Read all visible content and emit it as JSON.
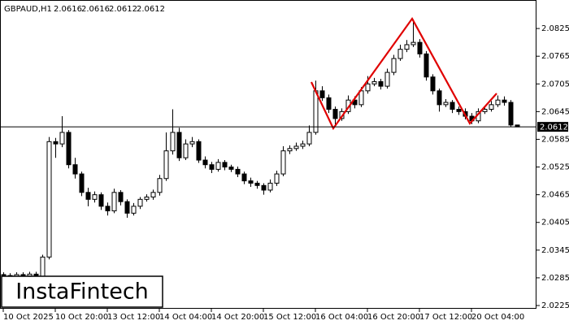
{
  "chart_data": {
    "type": "candlestick",
    "symbol": "GBPAUD,H1",
    "watermark": "InstaFintech",
    "open": [
      2.0292,
      2.029,
      2.0288,
      2.0292,
      2.0289,
      2.0293,
      2.0285,
      2.033,
      2.058,
      2.0575,
      2.06,
      2.053,
      2.051,
      2.047,
      2.0455,
      2.0465,
      2.044,
      2.043,
      2.047,
      2.045,
      2.0425,
      2.044,
      2.0455,
      2.046,
      2.047,
      2.05,
      2.056,
      2.06,
      2.0545,
      2.0575,
      2.058,
      2.054,
      2.053,
      2.052,
      2.0535,
      2.0525,
      2.052,
      2.051,
      2.0495,
      2.049,
      2.0485,
      2.0475,
      2.049,
      2.051,
      2.056,
      2.0565,
      2.057,
      2.0575,
      2.06,
      2.069,
      2.0675,
      2.065,
      2.063,
      2.0645,
      2.067,
      2.066,
      2.069,
      2.0705,
      2.071,
      2.07,
      2.073,
      2.076,
      2.078,
      2.079,
      2.0795,
      2.077,
      2.072,
      2.069,
      2.066,
      2.0665,
      2.065,
      2.0645,
      2.0635,
      2.0625,
      2.0645,
      2.065,
      2.066,
      2.067,
      2.0665,
      2.0616
    ],
    "high": [
      2.0297,
      2.0295,
      2.0297,
      2.0297,
      2.0298,
      2.0298,
      2.0335,
      2.059,
      2.0588,
      2.0635,
      2.0605,
      2.0545,
      2.0515,
      2.048,
      2.0472,
      2.047,
      2.0448,
      2.0478,
      2.0475,
      2.0455,
      2.0447,
      2.046,
      2.0466,
      2.0476,
      2.0508,
      2.06,
      2.065,
      2.061,
      2.0585,
      2.059,
      2.0585,
      2.0548,
      2.0536,
      2.0542,
      2.054,
      2.053,
      2.0526,
      2.0515,
      2.0502,
      2.0495,
      2.049,
      2.0498,
      2.0517,
      2.057,
      2.0572,
      2.0578,
      2.0582,
      2.0615,
      2.0712,
      2.07,
      2.0682,
      2.0656,
      2.0652,
      2.068,
      2.0678,
      2.0698,
      2.0722,
      2.0718,
      2.0716,
      2.0738,
      2.0768,
      2.079,
      2.08,
      2.0845,
      2.0802,
      2.0776,
      2.0726,
      2.0695,
      2.0672,
      2.067,
      2.0656,
      2.0652,
      2.0642,
      2.0652,
      2.0658,
      2.0668,
      2.068,
      2.0678,
      2.067,
      2.0616
    ],
    "low": [
      2.0285,
      2.0283,
      2.0283,
      2.0284,
      2.0284,
      2.028,
      2.028,
      2.0325,
      2.0545,
      2.0568,
      2.0522,
      2.05,
      2.0462,
      2.044,
      2.0448,
      2.0432,
      2.042,
      2.0425,
      2.0442,
      2.0415,
      2.042,
      2.0434,
      2.045,
      2.0454,
      2.0463,
      2.0495,
      2.0552,
      2.0538,
      2.054,
      2.0568,
      2.0534,
      2.0522,
      2.0512,
      2.0515,
      2.0518,
      2.0514,
      2.0503,
      2.0488,
      2.0482,
      2.0478,
      2.0465,
      2.047,
      2.0484,
      2.0505,
      2.0553,
      2.056,
      2.0564,
      2.057,
      2.0595,
      2.0668,
      2.0642,
      2.0615,
      2.0625,
      2.064,
      2.0652,
      2.0655,
      2.0684,
      2.07,
      2.0693,
      2.0695,
      2.0724,
      2.0755,
      2.0774,
      2.0785,
      2.0762,
      2.0712,
      2.0682,
      2.0645,
      2.0655,
      2.0642,
      2.0638,
      2.0628,
      2.0618,
      2.062,
      2.064,
      2.0645,
      2.0655,
      2.0658,
      2.0612,
      2.0612
    ],
    "close": [
      2.029,
      2.0288,
      2.0292,
      2.0289,
      2.0293,
      2.0285,
      2.033,
      2.058,
      2.0575,
      2.06,
      2.053,
      2.051,
      2.047,
      2.0455,
      2.0465,
      2.044,
      2.043,
      2.047,
      2.045,
      2.0425,
      2.044,
      2.0455,
      2.046,
      2.047,
      2.05,
      2.056,
      2.06,
      2.0545,
      2.0575,
      2.058,
      2.054,
      2.053,
      2.052,
      2.0535,
      2.0525,
      2.052,
      2.051,
      2.0495,
      2.049,
      2.0485,
      2.0475,
      2.049,
      2.051,
      2.056,
      2.0565,
      2.057,
      2.0575,
      2.06,
      2.069,
      2.0675,
      2.065,
      2.063,
      2.0645,
      2.067,
      2.066,
      2.069,
      2.0705,
      2.071,
      2.07,
      2.073,
      2.076,
      2.078,
      2.079,
      2.0795,
      2.077,
      2.072,
      2.069,
      2.066,
      2.0665,
      2.065,
      2.0645,
      2.0635,
      2.0625,
      2.0645,
      2.065,
      2.066,
      2.067,
      2.0665,
      2.0616,
      2.0612
    ],
    "up_color": "#ffffff",
    "down_color": "#000000",
    "ylim": [
      2.0218,
      2.0885
    ],
    "yticks": [
      2.0225,
      2.0285,
      2.0345,
      2.0405,
      2.0465,
      2.0525,
      2.0585,
      2.0645,
      2.0705,
      2.0765,
      2.0825
    ],
    "xticks": [
      {
        "value": 0,
        "label": "10 Oct 2025"
      },
      {
        "value": 8,
        "label": "10 Oct 20:00"
      },
      {
        "value": 16,
        "label": "13 Oct 12:00"
      },
      {
        "value": 24,
        "label": "14 Oct 04:00"
      },
      {
        "value": 32,
        "label": "14 Oct 20:00"
      },
      {
        "value": 40,
        "label": "15 Oct 12:00"
      },
      {
        "value": 48,
        "label": "16 Oct 04:00"
      },
      {
        "value": 56,
        "label": "16 Oct 20:00"
      },
      {
        "value": 64,
        "label": "17 Oct 12:00"
      },
      {
        "value": 72,
        "label": "20 Oct 04:00"
      }
    ]
  }
}
